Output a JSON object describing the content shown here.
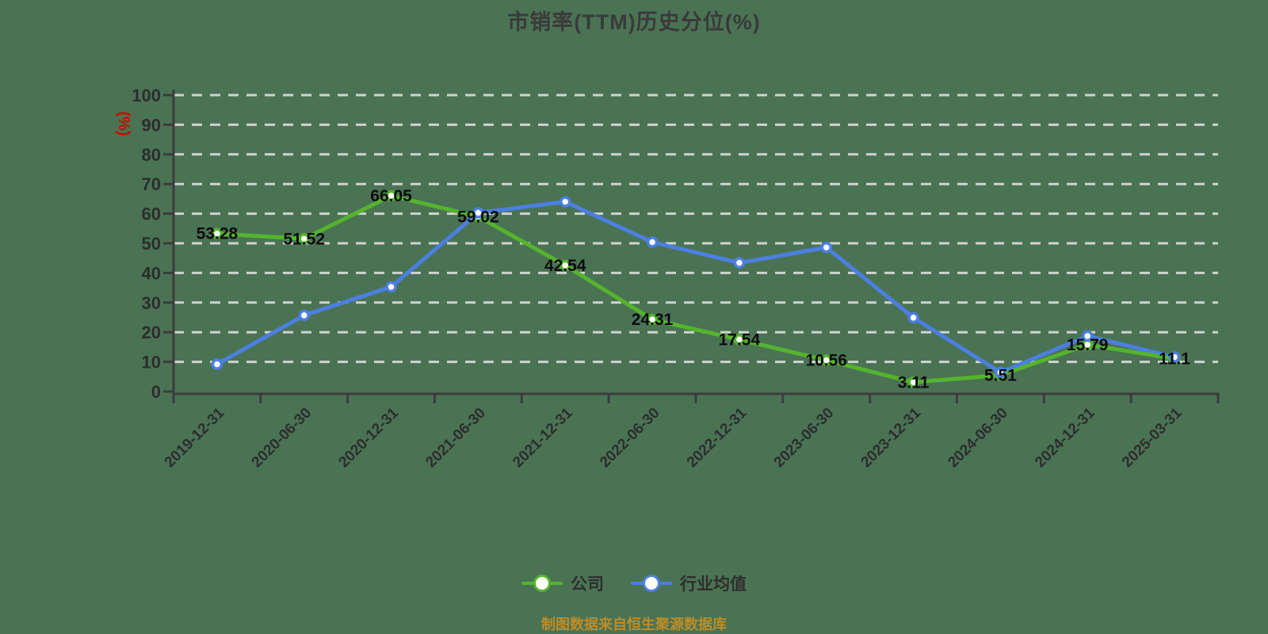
{
  "title": "市销率(TTM)历史分位(%)",
  "footer": "制图数据来自恒生聚源数据库",
  "colors": {
    "background": "#4A7354",
    "grid": "#D0D3CE",
    "axis": "#3C3C3C",
    "tick_label": "#2D2D2D",
    "title": "#3A3A3A",
    "y_unit_red": "#D90000",
    "data_label": "#0C0C0C",
    "footer": "#BC8D28",
    "marker_fill": "#FFFFFF",
    "company_green": "#55B42D",
    "industry_blue": "#4C7FE2"
  },
  "legend": {
    "items": [
      {
        "label": "公司",
        "color": "#55B42D"
      },
      {
        "label": "行业均值",
        "color": "#4C7FE2"
      }
    ]
  },
  "chart_data": {
    "type": "line",
    "title": "市销率(TTM)历史分位(%)",
    "ylabel": "(%)",
    "xlabel": "",
    "ylim": [
      0,
      100
    ],
    "ytick_step": 10,
    "yticks": [
      0,
      10,
      20,
      30,
      40,
      50,
      60,
      70,
      80,
      90,
      100
    ],
    "grid": "horizontal-dashed",
    "legend_position": "bottom",
    "x_label_rotation": 45,
    "categories": [
      "2019-12-31",
      "2020-06-30",
      "2020-12-31",
      "2021-06-30",
      "2021-12-31",
      "2022-06-30",
      "2022-12-31",
      "2023-06-30",
      "2023-12-31",
      "2024-06-30",
      "2024-12-31",
      "2025-03-31"
    ],
    "series": [
      {
        "name": "公司",
        "color": "#55B42D",
        "show_labels": true,
        "values": [
          53.28,
          51.52,
          66.05,
          59.02,
          42.54,
          24.31,
          17.54,
          10.56,
          3.11,
          5.51,
          15.79,
          11.1
        ]
      },
      {
        "name": "行业均值",
        "color": "#4C7FE2",
        "show_labels": false,
        "values": [
          9.2,
          25.7,
          35.3,
          60.3,
          64.0,
          50.4,
          43.4,
          48.6,
          24.9,
          6.4,
          18.7,
          11.6
        ]
      }
    ]
  }
}
